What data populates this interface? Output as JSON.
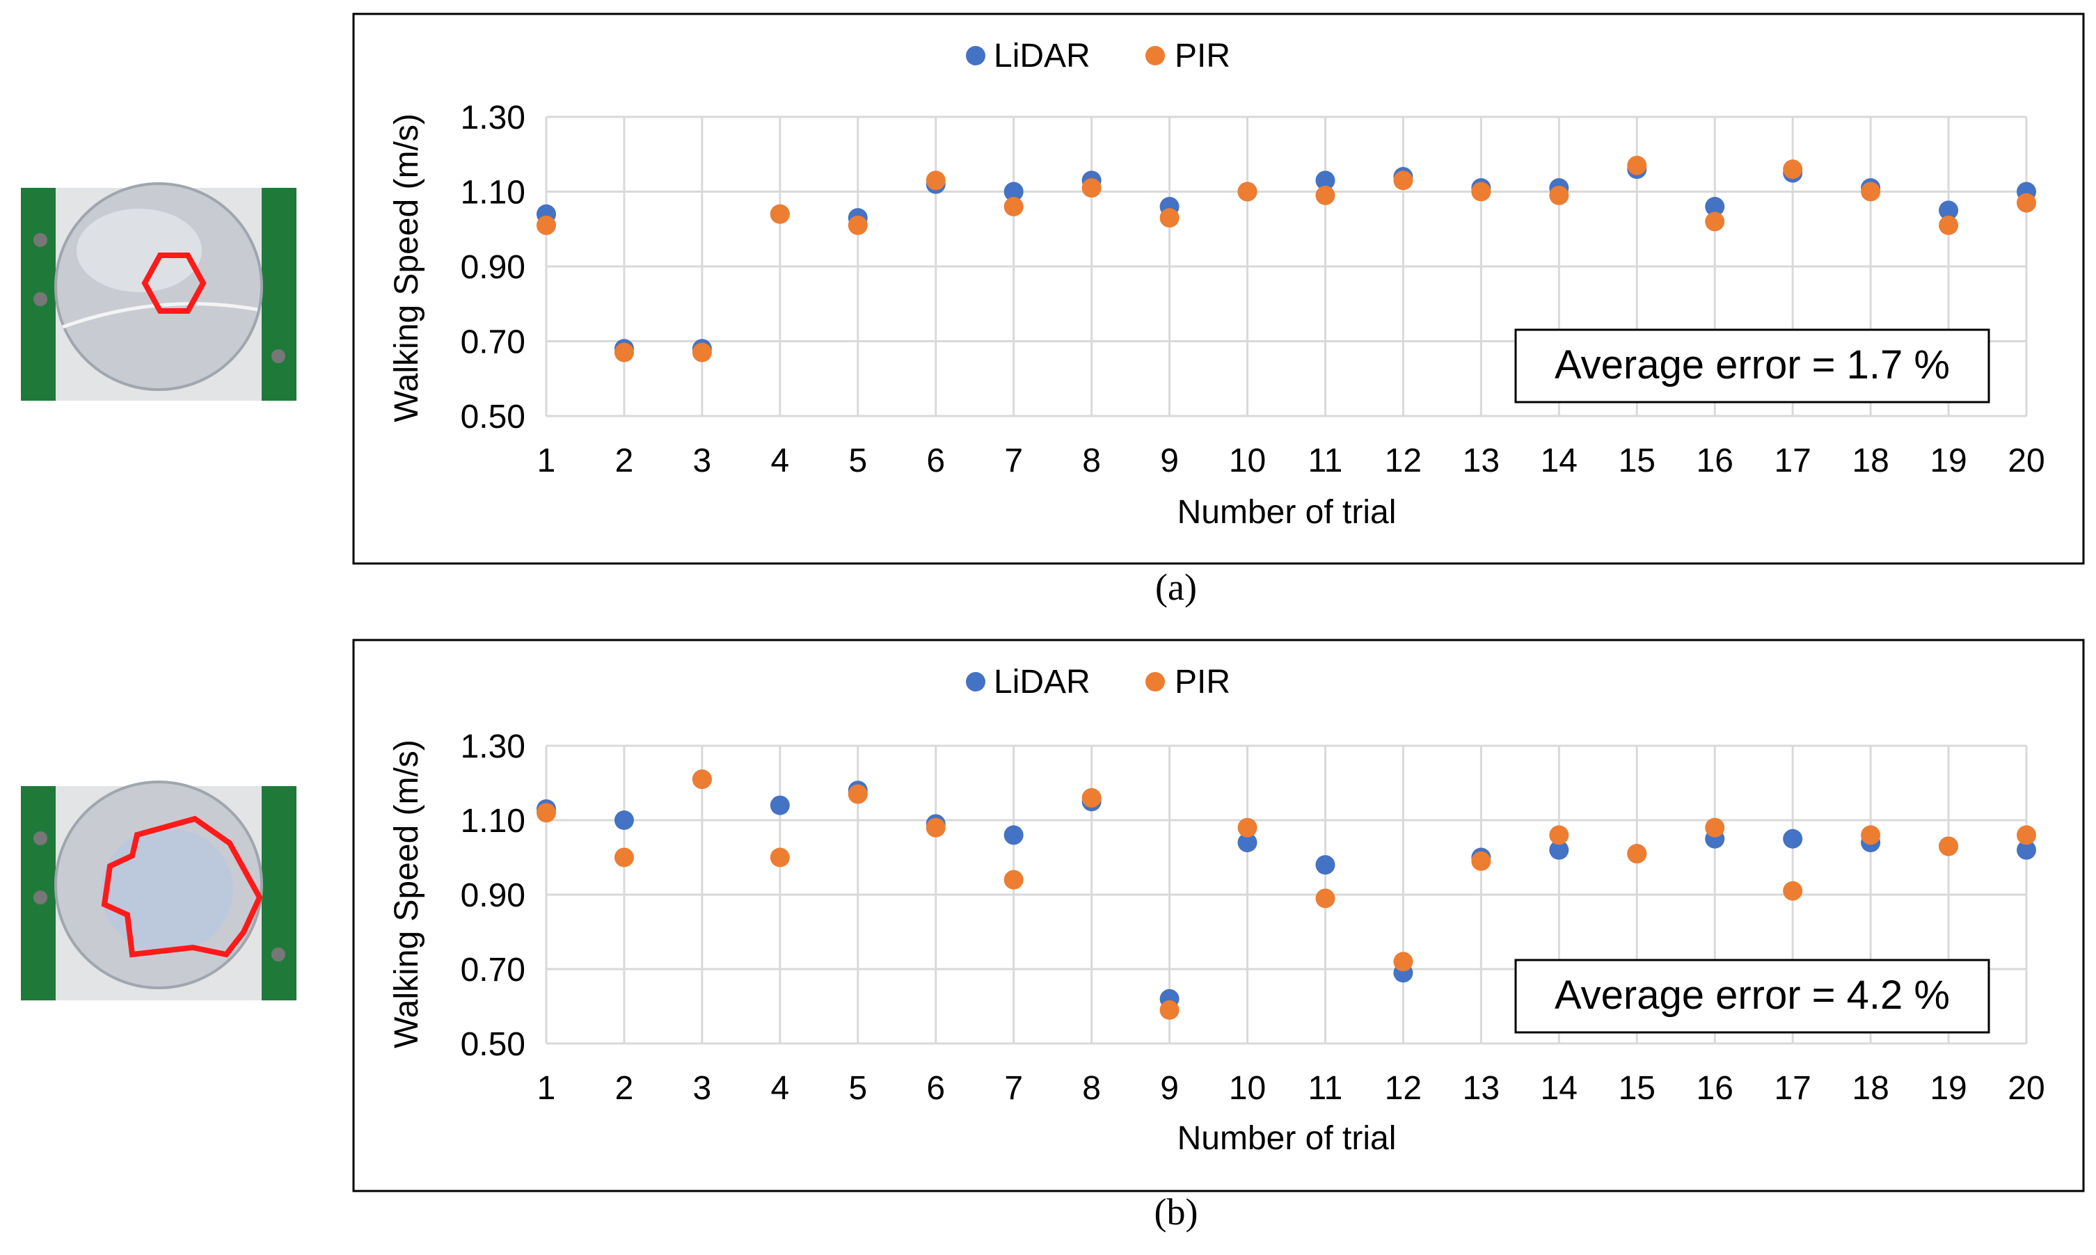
{
  "colors": {
    "lidar": "#4472C4",
    "pir": "#ED7D31",
    "grid": "#d9d9d9",
    "outline": "#ff1a1a",
    "board": "#1f7a3a"
  },
  "chart_data": [
    {
      "type": "scatter",
      "caption": "(a)",
      "xlabel": "Number of trial",
      "ylabel": "Walking Speed (m/s)",
      "x": [
        1,
        2,
        3,
        4,
        5,
        6,
        7,
        8,
        9,
        10,
        11,
        12,
        13,
        14,
        15,
        16,
        17,
        18,
        19,
        20
      ],
      "ylim": [
        0.5,
        1.3
      ],
      "yticks": [
        "0.50",
        "0.70",
        "0.90",
        "1.10",
        "1.30"
      ],
      "grid": true,
      "legend_position": "top-center",
      "annotation": "Average error = 1.7 %",
      "series": [
        {
          "name": "LiDAR",
          "color": "#4472C4",
          "values": [
            1.04,
            0.68,
            0.68,
            1.04,
            1.03,
            1.12,
            1.1,
            1.13,
            1.06,
            1.1,
            1.13,
            1.14,
            1.11,
            1.11,
            1.16,
            1.06,
            1.15,
            1.11,
            1.05,
            1.1
          ]
        },
        {
          "name": "PIR",
          "color": "#ED7D31",
          "values": [
            1.01,
            0.67,
            0.67,
            1.04,
            1.01,
            1.13,
            1.06,
            1.11,
            1.03,
            1.1,
            1.09,
            1.13,
            1.1,
            1.09,
            1.17,
            1.02,
            1.16,
            1.1,
            1.01,
            1.07
          ]
        }
      ]
    },
    {
      "type": "scatter",
      "caption": "(b)",
      "xlabel": "Number of trial",
      "ylabel": "Walking Speed (m/s)",
      "x": [
        1,
        2,
        3,
        4,
        5,
        6,
        7,
        8,
        9,
        10,
        11,
        12,
        13,
        14,
        15,
        16,
        17,
        18,
        19,
        20
      ],
      "ylim": [
        0.5,
        1.3
      ],
      "yticks": [
        "0.50",
        "0.70",
        "0.90",
        "1.10",
        "1.30"
      ],
      "grid": true,
      "legend_position": "top-center",
      "annotation": "Average error = 4.2 %",
      "series": [
        {
          "name": "LiDAR",
          "color": "#4472C4",
          "values": [
            1.13,
            1.1,
            1.21,
            1.14,
            1.18,
            1.09,
            1.06,
            1.15,
            0.62,
            1.04,
            0.98,
            0.69,
            1.0,
            1.02,
            1.01,
            1.05,
            1.05,
            1.04,
            1.03,
            1.02
          ]
        },
        {
          "name": "PIR",
          "color": "#ED7D31",
          "values": [
            1.12,
            1.0,
            1.21,
            1.0,
            1.17,
            1.08,
            0.94,
            1.16,
            0.59,
            1.08,
            0.89,
            0.72,
            0.99,
            1.06,
            1.01,
            1.08,
            0.91,
            1.06,
            1.03,
            1.06
          ]
        }
      ]
    }
  ]
}
